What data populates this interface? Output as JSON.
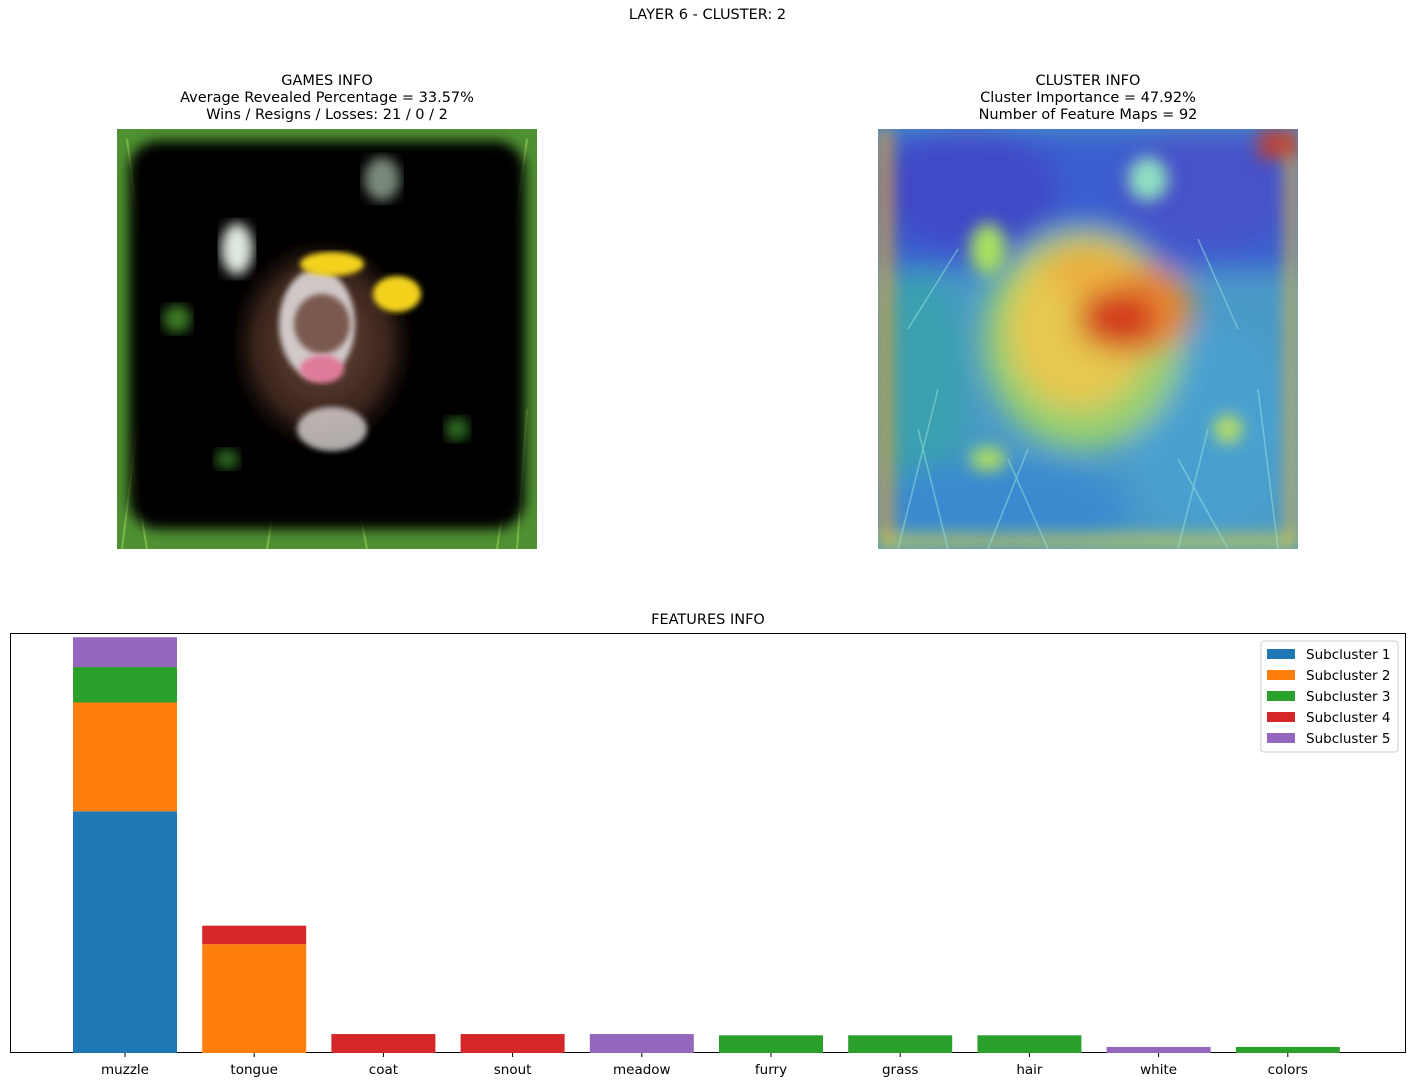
{
  "suptitle": "LAYER 6 - CLUSTER: 2",
  "games_info": {
    "heading": "GAMES INFO",
    "revealed": "Average Revealed Percentage = 33.57%",
    "record": "Wins / Resigns / Losses: 21 / 0 / 2"
  },
  "cluster_info": {
    "heading": "CLUSTER INFO",
    "importance": "Cluster Importance = 47.92%",
    "feature_maps": "Number of Feature Maps = 92"
  },
  "chart_data": {
    "type": "bar",
    "stacked": true,
    "title": "FEATURES INFO",
    "xlabel": "",
    "ylabel": "",
    "yaxis_visible": false,
    "ylim": [
      0,
      1.04
    ],
    "legend_position": "upper right",
    "categories": [
      "muzzle",
      "tongue",
      "coat",
      "snout",
      "meadow",
      "furry",
      "grass",
      "hair",
      "white",
      "colors"
    ],
    "series": [
      {
        "name": "Subcluster 1",
        "color": "#1f77b4",
        "values": [
          0.6,
          0,
          0,
          0,
          0,
          0,
          0,
          0,
          0,
          0
        ]
      },
      {
        "name": "Subcluster 2",
        "color": "#ff7f0e",
        "values": [
          0.27,
          0.27,
          0,
          0,
          0,
          0,
          0,
          0,
          0,
          0
        ]
      },
      {
        "name": "Subcluster 3",
        "color": "#2ca02c",
        "values": [
          0.088,
          0,
          0,
          0,
          0,
          0.044,
          0.044,
          0.044,
          0,
          0.015
        ]
      },
      {
        "name": "Subcluster 4",
        "color": "#d62728",
        "values": [
          0,
          0.046,
          0.047,
          0.047,
          0,
          0,
          0,
          0,
          0,
          0
        ]
      },
      {
        "name": "Subcluster 5",
        "color": "#9467bd",
        "values": [
          0.074,
          0,
          0,
          0,
          0.047,
          0,
          0,
          0,
          0.015,
          0
        ]
      }
    ]
  }
}
